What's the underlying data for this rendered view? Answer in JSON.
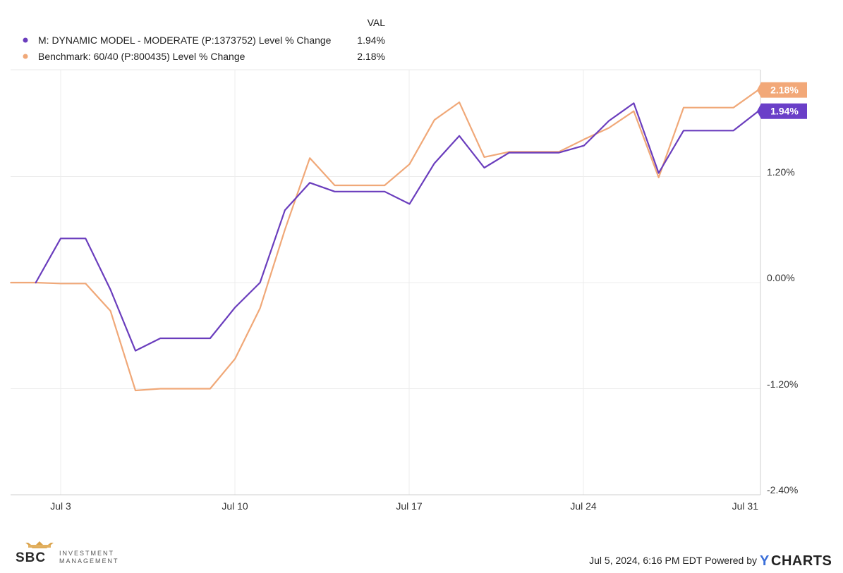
{
  "chart_data": {
    "type": "line",
    "legend": {
      "header": "VAL",
      "placement": "top-left"
    },
    "x_ticks": [
      "Jul 3",
      "Jul 10",
      "Jul 17",
      "Jul 24",
      "Jul 31"
    ],
    "y_ticks": [
      "1.20%",
      "0.00%",
      "-1.20%",
      "-2.40%"
    ],
    "ylim": [
      -2.4,
      2.4
    ],
    "xlim": [
      "2024-07-01",
      "2024-07-31"
    ],
    "grid": true,
    "x": [
      "2024-07-01",
      "2024-07-02",
      "2024-07-03",
      "2024-07-04",
      "2024-07-05",
      "2024-07-06",
      "2024-07-07",
      "2024-07-08",
      "2024-07-09",
      "2024-07-10",
      "2024-07-11",
      "2024-07-12",
      "2024-07-13",
      "2024-07-14",
      "2024-07-15",
      "2024-07-16",
      "2024-07-17",
      "2024-07-18",
      "2024-07-19",
      "2024-07-20",
      "2024-07-21",
      "2024-07-22",
      "2024-07-23",
      "2024-07-24",
      "2024-07-25",
      "2024-07-26",
      "2024-07-27",
      "2024-07-28",
      "2024-07-29",
      "2024-07-30",
      "2024-07-31"
    ],
    "series": [
      {
        "name": "M: DYNAMIC MODEL - MODERATE (P:1373752) Level % Change",
        "value_label": "1.94%",
        "end_label": "1.94%",
        "color": "#6a3dbd",
        "label_color": "#6a3fc8",
        "values": [
          null,
          0.0,
          0.5,
          0.5,
          -0.08,
          -0.77,
          -0.63,
          -0.63,
          -0.63,
          -0.28,
          0.0,
          0.82,
          1.13,
          1.03,
          1.03,
          1.03,
          0.89,
          1.35,
          1.66,
          1.3,
          1.47,
          1.47,
          1.47,
          1.55,
          1.83,
          2.03,
          1.24,
          1.72,
          1.72,
          1.72,
          1.94
        ]
      },
      {
        "name": "Benchmark: 60/40 (P:800435) Level % Change",
        "value_label": "2.18%",
        "end_label": "2.18%",
        "color": "#f0a878",
        "label_color": "#f2a878",
        "values": [
          0.0,
          0.0,
          -0.01,
          -0.01,
          -0.32,
          -1.22,
          -1.2,
          -1.2,
          -1.2,
          -0.86,
          -0.29,
          0.6,
          1.41,
          1.1,
          1.1,
          1.1,
          1.34,
          1.84,
          2.04,
          1.42,
          1.48,
          1.48,
          1.48,
          1.62,
          1.75,
          1.94,
          1.19,
          1.98,
          1.98,
          1.98,
          2.18
        ]
      }
    ]
  },
  "footer": {
    "timestamp": "Jul 5, 2024, 6:16 PM EDT Powered by",
    "brand_y": "Y",
    "brand_charts": "CHARTS",
    "logo_text_sbc": "SBC",
    "logo_text_line1": "INVESTMENT",
    "logo_text_line2": "MANAGEMENT"
  }
}
